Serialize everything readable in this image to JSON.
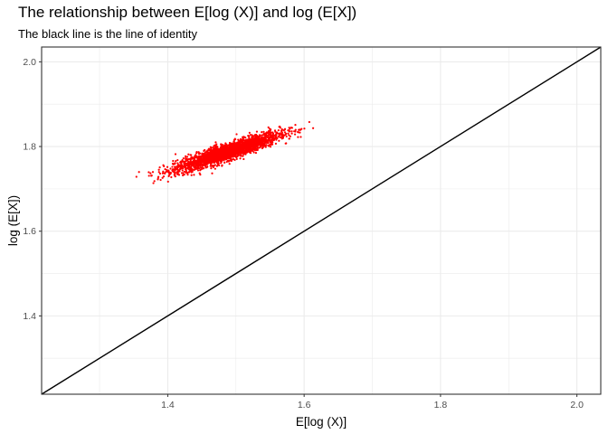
{
  "chart_data": {
    "type": "scatter",
    "title": "The relationship between E[log (X)] and log (E[X])",
    "subtitle": "The black line is the line of identity",
    "xlabel": "E[log (X)]",
    "ylabel": "log (E[X])",
    "xlim": [
      1.215,
      2.035
    ],
    "ylim": [
      1.215,
      2.035
    ],
    "x_ticks": [
      1.4,
      1.6,
      1.8,
      2.0
    ],
    "x_tick_labels": [
      "1.4",
      "1.6",
      "1.8",
      "2.0"
    ],
    "y_ticks": [
      1.4,
      1.6,
      1.8,
      2.0
    ],
    "y_tick_labels": [
      "1.4",
      "1.6",
      "1.8",
      "2.0"
    ],
    "grid": true,
    "point_color": "#ff0000",
    "reference_line": {
      "label": "line of identity",
      "slope": 1,
      "intercept": 0,
      "color": "#000000"
    },
    "point_cloud": {
      "center": [
        1.487,
        1.787
      ],
      "x_range": [
        1.345,
        1.62
      ],
      "y_range": [
        1.71,
        1.87
      ],
      "correlation": 0.9
    }
  }
}
